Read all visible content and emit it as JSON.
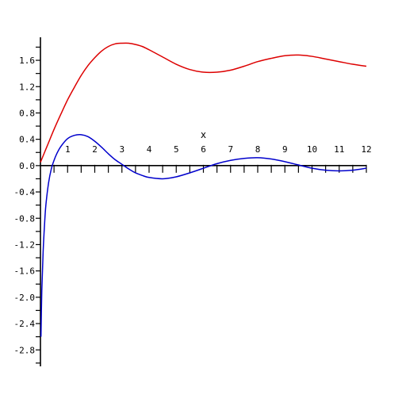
{
  "chart_data": {
    "type": "line",
    "xlabel": "x",
    "ylabel": "",
    "xlim": [
      0,
      12
    ],
    "ylim": [
      -3.05,
      1.95
    ],
    "grid": false,
    "x_ticks": [
      1,
      2,
      3,
      4,
      5,
      6,
      7,
      8,
      9,
      10,
      11,
      12
    ],
    "y_ticks": [
      "1.6",
      "1.2",
      "0.8",
      "0.4",
      "0.0",
      "-0.4",
      "-0.8",
      "-1.2",
      "-1.6",
      "-2.0",
      "-2.4",
      "-2.8"
    ],
    "series": [
      {
        "color": "#dd0000",
        "x": [
          0,
          0.25,
          0.5,
          0.75,
          1,
          1.25,
          1.5,
          1.75,
          2,
          2.25,
          2.5,
          2.75,
          3,
          3.25,
          3.5,
          3.75,
          4,
          4.5,
          5,
          5.5,
          6,
          6.5,
          7,
          7.5,
          8,
          8.5,
          9,
          9.5,
          10,
          10.5,
          11,
          11.5,
          12
        ],
        "values": [
          0.05,
          0.3,
          0.55,
          0.78,
          1.0,
          1.19,
          1.37,
          1.52,
          1.64,
          1.74,
          1.81,
          1.85,
          1.86,
          1.86,
          1.84,
          1.81,
          1.76,
          1.65,
          1.54,
          1.46,
          1.42,
          1.42,
          1.45,
          1.51,
          1.58,
          1.63,
          1.67,
          1.68,
          1.66,
          1.62,
          1.58,
          1.54,
          1.51
        ]
      },
      {
        "color": "#0000cc",
        "x": [
          0.02,
          0.05,
          0.1,
          0.15,
          0.2,
          0.3,
          0.4,
          0.5,
          0.6,
          0.75,
          1.0,
          1.25,
          1.5,
          1.75,
          2.0,
          2.25,
          2.5,
          2.75,
          3.0,
          3.25,
          3.5,
          3.75,
          4.0,
          4.5,
          5.0,
          5.5,
          6.0,
          6.5,
          7.0,
          7.5,
          8.0,
          8.5,
          9.0,
          9.5,
          10.0,
          10.5,
          11.0,
          11.5,
          12.0
        ],
        "values": [
          -2.6,
          -1.9,
          -1.3,
          -0.9,
          -0.6,
          -0.26,
          -0.05,
          0.08,
          0.18,
          0.29,
          0.41,
          0.46,
          0.47,
          0.44,
          0.37,
          0.28,
          0.18,
          0.09,
          0.02,
          -0.05,
          -0.11,
          -0.15,
          -0.18,
          -0.2,
          -0.17,
          -0.11,
          -0.04,
          0.03,
          0.08,
          0.11,
          0.12,
          0.1,
          0.06,
          0.01,
          -0.04,
          -0.07,
          -0.08,
          -0.07,
          -0.04
        ]
      }
    ]
  }
}
